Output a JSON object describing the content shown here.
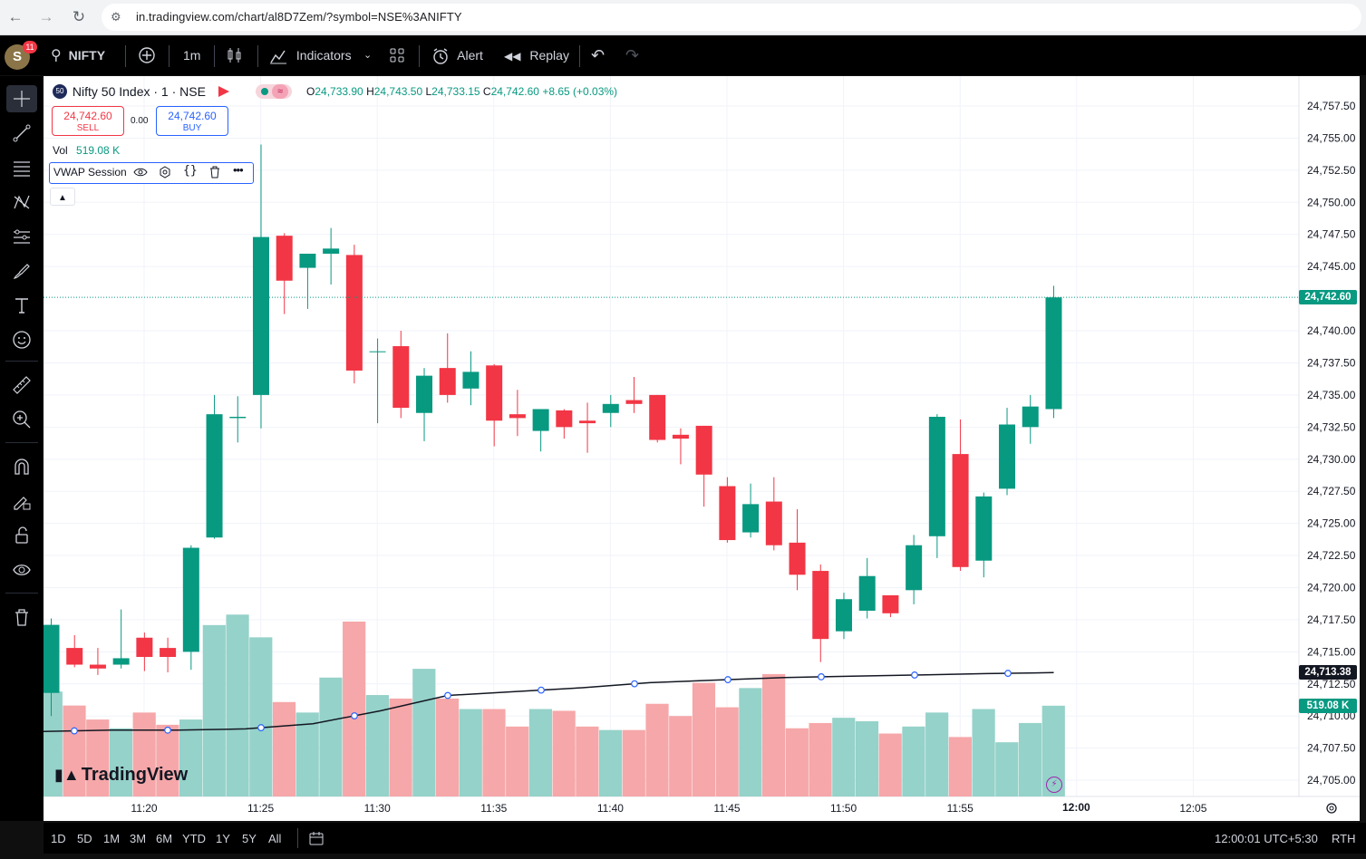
{
  "browser": {
    "url": "in.tradingview.com/chart/al8D7Zem/?symbol=NSE%3ANIFTY"
  },
  "toolbar": {
    "avatar_letter": "S",
    "notification_count": "11",
    "symbol": "NIFTY",
    "interval": "1m",
    "indicators_label": "Indicators",
    "alert_label": "Alert",
    "replay_label": "Replay"
  },
  "legend": {
    "exchange_badge": "50",
    "title": "Nifty 50 Index · 1 · NSE",
    "open_label": "O",
    "open": "24,733.90",
    "high_label": "H",
    "high": "24,743.50",
    "low_label": "L",
    "low": "24,733.15",
    "close_label": "C",
    "close": "24,742.60",
    "change": "+8.65 (+0.03%)",
    "sell_price": "24,742.60",
    "sell_label": "SELL",
    "spread": "0.00",
    "buy_price": "24,742.60",
    "buy_label": "BUY",
    "vol_label": "Vol",
    "vol_value": "519.08 K",
    "indicator_name": "VWAP Session"
  },
  "price_axis": {
    "last_price_tag": "24,742.60",
    "vwap_tag": "24,713.38",
    "volume_tag": "519.08 K"
  },
  "time_axis": {
    "highlight_label": "12:00"
  },
  "bottombar": {
    "ranges": [
      "1D",
      "5D",
      "1M",
      "3M",
      "6M",
      "YTD",
      "1Y",
      "5Y",
      "All"
    ],
    "clock": "12:00:01 UTC+5:30",
    "session": "RTH",
    "watermark": "TradingView"
  },
  "chart_data": {
    "type": "candlestick",
    "interval": "1m",
    "time_labels": [
      "11:20",
      "11:25",
      "11:30",
      "11:35",
      "11:40",
      "11:45",
      "11:50",
      "11:55",
      "12:00",
      "12:05"
    ],
    "price_ticks": [
      "24,757.50",
      "24,755.00",
      "24,752.50",
      "24,750.00",
      "24,747.50",
      "24,745.00",
      "24,740.00",
      "24,737.50",
      "24,735.00",
      "24,732.50",
      "24,730.00",
      "24,727.50",
      "24,725.00",
      "24,722.50",
      "24,720.00",
      "24,717.50",
      "24,715.00",
      "24,712.50",
      "24,710.00",
      "24,707.50",
      "24,705.00"
    ],
    "ylim": [
      24704.3,
      24757.5
    ],
    "colors": {
      "up": "#089981",
      "down": "#f23645",
      "vol_up": "#95d2c9",
      "vol_down": "#f6a7a9",
      "vwap": "#131722"
    },
    "candles": [
      {
        "time": "11:18",
        "o": 24711.8,
        "h": 24717.6,
        "l": 24710.0,
        "c": 24717.1
      },
      {
        "time": "11:19",
        "o": 24715.3,
        "h": 24716.3,
        "l": 24713.8,
        "c": 24714.0
      },
      {
        "time": "11:20",
        "o": 24714.0,
        "h": 24715.3,
        "l": 24713.2,
        "c": 24713.7
      },
      {
        "time": "11:21",
        "o": 24714.0,
        "h": 24718.3,
        "l": 24713.7,
        "c": 24714.5
      },
      {
        "time": "11:22",
        "o": 24716.1,
        "h": 24716.5,
        "l": 24713.5,
        "c": 24714.6
      },
      {
        "time": "11:23",
        "o": 24715.3,
        "h": 24716.1,
        "l": 24713.4,
        "c": 24714.6
      },
      {
        "time": "11:24",
        "o": 24715.0,
        "h": 24723.3,
        "l": 24713.6,
        "c": 24723.1
      },
      {
        "time": "11:25",
        "o": 24723.9,
        "h": 24735.0,
        "l": 24723.8,
        "c": 24733.5
      },
      {
        "time": "11:26",
        "o": 24733.2,
        "h": 24734.9,
        "l": 24731.3,
        "c": 24733.3
      },
      {
        "time": "11:27",
        "o": 24735.0,
        "h": 24754.5,
        "l": 24732.4,
        "c": 24747.3
      },
      {
        "time": "11:28",
        "o": 24747.4,
        "h": 24747.6,
        "l": 24741.3,
        "c": 24743.9
      },
      {
        "time": "11:29",
        "o": 24744.9,
        "h": 24745.7,
        "l": 24741.7,
        "c": 24746.0
      },
      {
        "time": "11:30",
        "o": 24746.0,
        "h": 24748.0,
        "l": 24743.6,
        "c": 24746.4
      },
      {
        "time": "11:31",
        "o": 24745.9,
        "h": 24746.7,
        "l": 24735.9,
        "c": 24736.9
      },
      {
        "time": "11:32",
        "o": 24738.4,
        "h": 24739.4,
        "l": 24732.8,
        "c": 24738.4
      },
      {
        "time": "11:33",
        "o": 24738.8,
        "h": 24740.0,
        "l": 24733.2,
        "c": 24734.0
      },
      {
        "time": "11:34",
        "o": 24733.6,
        "h": 24737.1,
        "l": 24731.4,
        "c": 24736.5
      },
      {
        "time": "11:35",
        "o": 24737.1,
        "h": 24739.8,
        "l": 24734.4,
        "c": 24735.0
      },
      {
        "time": "11:36",
        "o": 24735.5,
        "h": 24738.4,
        "l": 24734.2,
        "c": 24736.8
      },
      {
        "time": "11:37",
        "o": 24737.3,
        "h": 24737.4,
        "l": 24731.0,
        "c": 24733.0
      },
      {
        "time": "11:38",
        "o": 24733.5,
        "h": 24735.4,
        "l": 24731.8,
        "c": 24733.2
      },
      {
        "time": "11:39",
        "o": 24732.2,
        "h": 24733.9,
        "l": 24730.6,
        "c": 24733.9
      },
      {
        "time": "11:40",
        "o": 24733.8,
        "h": 24733.9,
        "l": 24731.6,
        "c": 24732.5
      },
      {
        "time": "11:41",
        "o": 24733.0,
        "h": 24734.4,
        "l": 24730.5,
        "c": 24732.8
      },
      {
        "time": "11:42",
        "o": 24733.6,
        "h": 24735.0,
        "l": 24732.5,
        "c": 24734.3
      },
      {
        "time": "11:43",
        "o": 24734.6,
        "h": 24736.4,
        "l": 24733.6,
        "c": 24734.3
      },
      {
        "time": "11:44",
        "o": 24735.0,
        "h": 24735.0,
        "l": 24731.3,
        "c": 24731.5
      },
      {
        "time": "11:45",
        "o": 24731.9,
        "h": 24732.4,
        "l": 24729.6,
        "c": 24731.6
      },
      {
        "time": "11:46",
        "o": 24732.6,
        "h": 24732.6,
        "l": 24726.3,
        "c": 24728.8
      },
      {
        "time": "11:47",
        "o": 24727.9,
        "h": 24728.6,
        "l": 24723.5,
        "c": 24723.7
      },
      {
        "time": "11:48",
        "o": 24724.3,
        "h": 24728.1,
        "l": 24723.9,
        "c": 24726.5
      },
      {
        "time": "11:49",
        "o": 24726.7,
        "h": 24728.6,
        "l": 24722.9,
        "c": 24723.3
      },
      {
        "time": "11:50",
        "o": 24723.5,
        "h": 24726.1,
        "l": 24719.8,
        "c": 24721.0
      },
      {
        "time": "11:51",
        "o": 24721.3,
        "h": 24721.8,
        "l": 24714.2,
        "c": 24716.0
      },
      {
        "time": "11:52",
        "o": 24716.6,
        "h": 24719.6,
        "l": 24716.0,
        "c": 24719.1
      },
      {
        "time": "11:53",
        "o": 24718.2,
        "h": 24722.3,
        "l": 24717.6,
        "c": 24720.9
      },
      {
        "time": "11:54",
        "o": 24719.4,
        "h": 24719.4,
        "l": 24717.7,
        "c": 24718.0
      },
      {
        "time": "11:55",
        "o": 24719.8,
        "h": 24724.1,
        "l": 24718.7,
        "c": 24723.3
      },
      {
        "time": "11:56",
        "o": 24724.0,
        "h": 24733.5,
        "l": 24722.3,
        "c": 24733.3
      },
      {
        "time": "11:57",
        "o": 24730.4,
        "h": 24733.1,
        "l": 24721.3,
        "c": 24721.6
      },
      {
        "time": "11:58",
        "o": 24722.1,
        "h": 24727.4,
        "l": 24720.8,
        "c": 24727.1
      },
      {
        "time": "11:59",
        "o": 24727.7,
        "h": 24734.0,
        "l": 24727.2,
        "c": 24732.7
      },
      {
        "time": "11:59",
        "o": 24732.5,
        "h": 24735.0,
        "l": 24731.2,
        "c": 24734.1
      },
      {
        "time": "12:00",
        "o": 24733.9,
        "h": 24743.5,
        "l": 24733.2,
        "c": 24742.6
      }
    ],
    "volumes_k": [
      600,
      520,
      440,
      390,
      480,
      410,
      440,
      980,
      1040,
      910,
      540,
      480,
      680,
      1000,
      580,
      560,
      730,
      560,
      500,
      500,
      400,
      500,
      490,
      400,
      380,
      380,
      530,
      460,
      650,
      510,
      620,
      700,
      390,
      420,
      450,
      430,
      360,
      400,
      480,
      340,
      500,
      310,
      420,
      519.08
    ],
    "vwap": [
      24708.8,
      24708.9,
      24708.9,
      24709.0,
      24709.4,
      24710.4,
      24711.6,
      24711.9,
      24712.2,
      24712.6,
      24712.8,
      24713.0,
      24713.1,
      24713.2,
      24713.3,
      24713.38
    ]
  }
}
